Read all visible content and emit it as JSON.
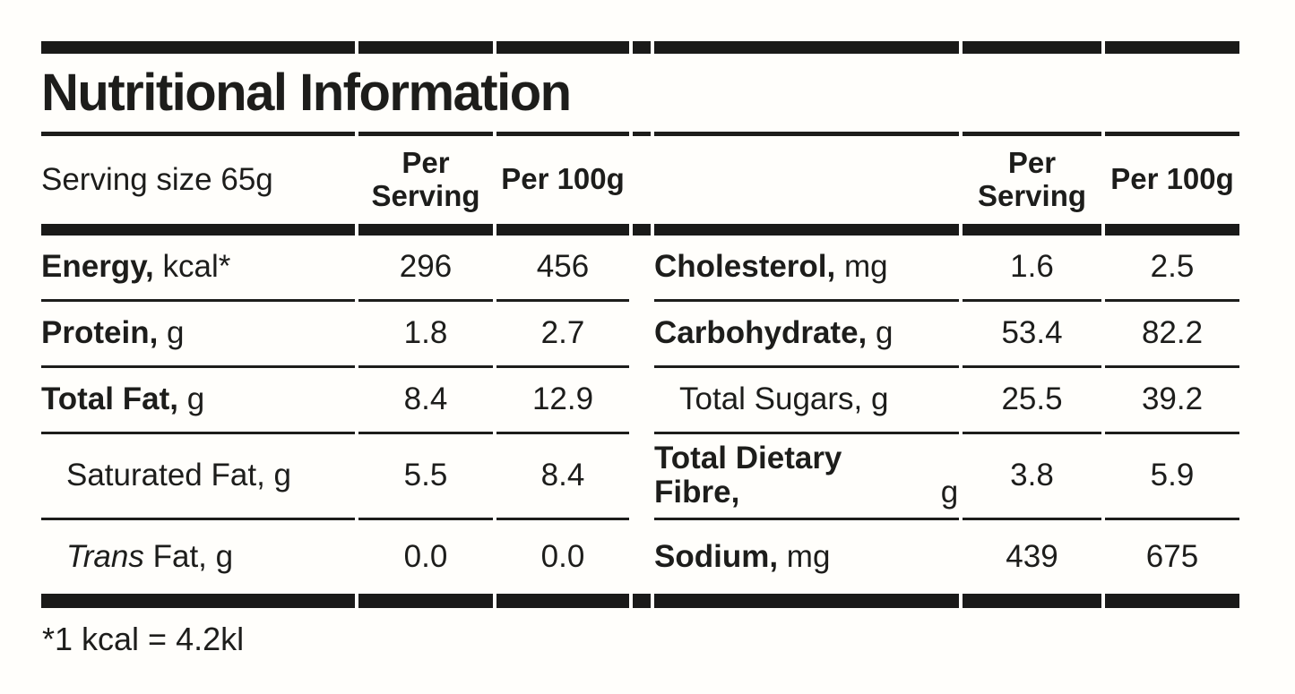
{
  "colors": {
    "ink": "#1d1d1b",
    "bar": "#1a1a19",
    "background": "#fffefb"
  },
  "title": "Nutritional Information",
  "header": {
    "serving_size": "Serving size 65g",
    "per_serving": "Per Serving",
    "per_100g": "Per 100g"
  },
  "footnote": "*1 kcal = 4.2kl",
  "rows": [
    {
      "left": {
        "italic": "",
        "bold": "Energy,",
        "regular": " kcal*",
        "per_serving": "296",
        "per_100g": "456"
      },
      "right": {
        "italic": "",
        "bold": "Cholesterol,",
        "regular": " mg",
        "per_serving": "1.6",
        "per_100g": "2.5"
      }
    },
    {
      "left": {
        "italic": "",
        "bold": "Protein,",
        "regular": " g",
        "per_serving": "1.8",
        "per_100g": "2.7"
      },
      "right": {
        "italic": "",
        "bold": "Carbohydrate,",
        "regular": " g",
        "per_serving": "53.4",
        "per_100g": "82.2"
      }
    },
    {
      "left": {
        "italic": "",
        "bold": "Total Fat,",
        "regular": " g",
        "per_serving": "8.4",
        "per_100g": "12.9"
      },
      "right": {
        "italic": "",
        "bold": "",
        "regular": "Total Sugars, g",
        "per_serving": "25.5",
        "per_100g": "39.2"
      }
    },
    {
      "left": {
        "italic": "",
        "bold": "",
        "regular": "Saturated Fat, g",
        "per_serving": "5.5",
        "per_100g": "8.4"
      },
      "right": {
        "italic": "",
        "bold": "Total Dietary Fibre,",
        "regular": " g",
        "per_serving": "3.8",
        "per_100g": "5.9"
      }
    },
    {
      "left": {
        "italic": "Trans",
        "bold": "",
        "regular": " Fat, g",
        "per_serving": "0.0",
        "per_100g": "0.0"
      },
      "right": {
        "italic": "",
        "bold": "Sodium,",
        "regular": " mg",
        "per_serving": "439",
        "per_100g": "675"
      }
    }
  ]
}
